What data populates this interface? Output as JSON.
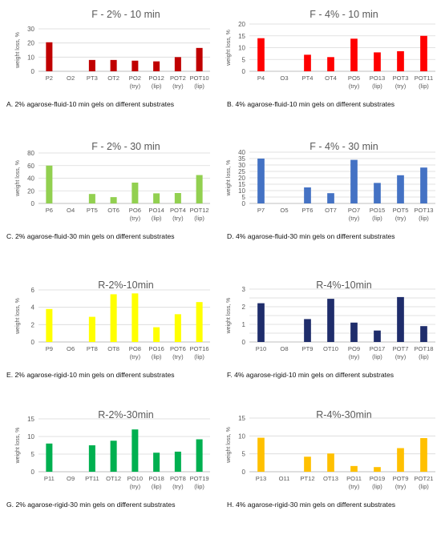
{
  "chart_data": [
    {
      "type": "bar",
      "title": "F - 2% - 10 min",
      "ylabel": "weight loss, %",
      "ylim": [
        0,
        30
      ],
      "yticks": [
        0,
        10,
        20,
        30
      ],
      "color": "#c00000",
      "categories": [
        "P2",
        "O2",
        "PT3",
        "OT2",
        "PO2\n(try)",
        "PO12\n(lip)",
        "POT2\n(try)",
        "POT10\n(lip)"
      ],
      "values": [
        20.5,
        0,
        8,
        8,
        7.5,
        7,
        10,
        16.5
      ],
      "caption": "A. 2% agarose-fluid-10 min gels on different substrates"
    },
    {
      "type": "bar",
      "title": "F - 4% - 10 min",
      "ylabel": "weight loss, %",
      "ylim": [
        0,
        20
      ],
      "yticks": [
        0,
        5,
        10,
        15,
        20
      ],
      "color": "#ff0000",
      "categories": [
        "P4",
        "O3",
        "PT4",
        "OT4",
        "PO5\n(try)",
        "PO13\n(lip)",
        "POT3\n(try)",
        "POT11\n(lip)"
      ],
      "values": [
        14,
        0,
        7,
        6,
        13.8,
        8,
        8.5,
        15
      ],
      "caption": "B. 4% agarose-fluid-10 min gels on different substrates"
    },
    {
      "type": "bar",
      "title": "F - 2% - 30 min",
      "ylabel": "weight loss, %",
      "ylim": [
        0,
        80
      ],
      "yticks": [
        0,
        20,
        40,
        60,
        80
      ],
      "color": "#92d050",
      "categories": [
        "P6",
        "O4",
        "PT5",
        "OT6",
        "PO6\n(try)",
        "PO14\n(lip)",
        "POT4\n(try)",
        "POT12\n(lip)"
      ],
      "values": [
        60,
        0,
        15,
        10,
        33,
        16,
        16.5,
        45
      ],
      "caption": "C. 2% agarose-fluid-30 min gels on different substrates"
    },
    {
      "type": "bar",
      "title": "F - 4% - 30 min",
      "ylabel": "weight loss, %",
      "ylim": [
        0,
        40
      ],
      "yticks": [
        0,
        5,
        10,
        15,
        20,
        25,
        30,
        35,
        40
      ],
      "color": "#4472c4",
      "categories": [
        "P7",
        "O5",
        "PT6",
        "OT7",
        "PO7\n(try)",
        "PO15\n(lip)",
        "POT5\n(try)",
        "POT13\n(lip)"
      ],
      "values": [
        35,
        0,
        12.5,
        8,
        34,
        16,
        22,
        28
      ],
      "caption": "D. 4% agarose-fluid-30 min gels on different substrates"
    },
    {
      "type": "bar",
      "title": "R-2%-10min",
      "ylabel": "weight loss, %",
      "ylim": [
        0,
        6
      ],
      "yticks": [
        0,
        2,
        4,
        6
      ],
      "color": "#ffff00",
      "categories": [
        "P9",
        "O6",
        "PT8",
        "OT8",
        "PO8\n(try)",
        "PO16\n(lip)",
        "POT6\n(try)",
        "POT16\n(lip)"
      ],
      "values": [
        3.8,
        0,
        2.9,
        5.5,
        5.6,
        1.7,
        3.2,
        4.6
      ],
      "caption": "E. 2% agarose-rigid-10 min gels on different substrates"
    },
    {
      "type": "bar",
      "title": "R-4%-10min",
      "ylabel": "weight loss, %",
      "ylim": [
        0,
        3
      ],
      "yticks": [
        0,
        0.5,
        1,
        1.5,
        2,
        2.5,
        3
      ],
      "ytick_labels": [
        "0",
        "",
        "1",
        "",
        "2",
        "",
        "3"
      ],
      "color": "#1f2d6b",
      "categories": [
        "P10",
        "O8",
        "PT9",
        "OT10",
        "PO9\n(try)",
        "PO17\n(lip)",
        "POT7\n(try)",
        "POT18\n(lip)"
      ],
      "values": [
        2.2,
        0,
        1.3,
        2.45,
        1.1,
        0.65,
        2.55,
        0.9
      ],
      "caption": "F. 4% agarose-rigid-10 min gels on different substrates"
    },
    {
      "type": "bar",
      "title": "R-2%-30min",
      "ylabel": "weight loss, %",
      "ylim": [
        0,
        15
      ],
      "yticks": [
        0,
        5,
        10,
        15
      ],
      "color": "#00b050",
      "categories": [
        "P11",
        "O9",
        "PT11",
        "OT12",
        "PO10\n(try)",
        "PO18\n(lip)",
        "POT8\n(try)",
        "POT19\n(lip)"
      ],
      "values": [
        8,
        0,
        7.5,
        8.8,
        12,
        5.4,
        5.7,
        9.2
      ],
      "caption": "G. 2% agarose-rigid-30 min gels on different substrates"
    },
    {
      "type": "bar",
      "title": "R-4%-30min",
      "ylabel": "weight loss, %",
      "ylim": [
        0,
        15
      ],
      "yticks": [
        0,
        5,
        10,
        15
      ],
      "color": "#ffc000",
      "categories": [
        "P13",
        "O11",
        "PT12",
        "OT13",
        "PO11\n(try)",
        "PO19\n(lip)",
        "POT9\n(try)",
        "POT21\n(lip)"
      ],
      "values": [
        9.5,
        0,
        4.2,
        5.1,
        1.6,
        1.3,
        6.6,
        9.4
      ],
      "caption": "H. 4% agarose-rigid-30 min gels on different substrates"
    }
  ]
}
